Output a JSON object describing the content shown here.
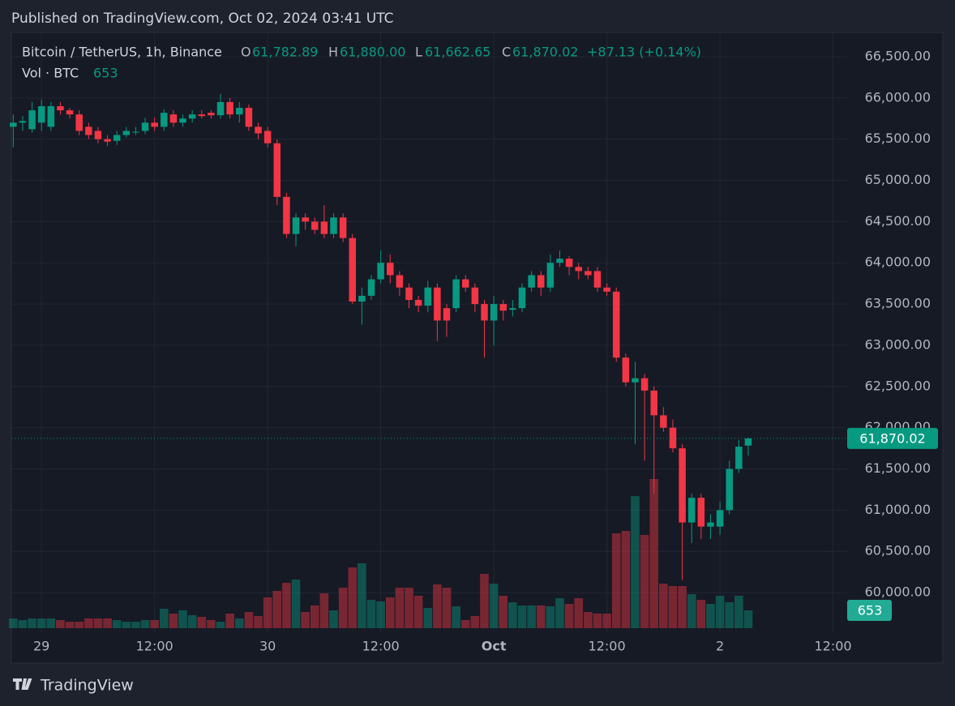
{
  "chart_data": {
    "type": "candlestick",
    "published": "Published on TradingView.com, Oct 02, 2024 03:41 UTC",
    "title": "Bitcoin / TetherUS, 1h, Binance",
    "legend": {
      "o_label": "O",
      "o": "61,782.89",
      "h_label": "H",
      "h": "61,880.00",
      "l_label": "L",
      "l": "61,662.65",
      "c_label": "C",
      "c": "61,870.02",
      "change": "+87.13 (+0.14%)"
    },
    "volume_title": "Vol · BTC",
    "volume_legend": "653",
    "last_price_label": "61,870.02",
    "last_volume_label": "653",
    "brand": "TradingView",
    "up_color": "#089981",
    "down_color": "#f23645",
    "open": [
      65650,
      65700,
      65620,
      65700,
      65650,
      65900,
      65850,
      65800,
      65650,
      65600,
      65500,
      65480,
      65550,
      65580,
      65600,
      65700,
      65650,
      65800,
      65700,
      65750,
      65800,
      65820,
      65790,
      65950,
      65800,
      65880,
      65650,
      65600,
      65450,
      64800,
      64350,
      64550,
      64500,
      64500,
      64350,
      64550,
      64300,
      63530,
      63600,
      63800,
      64000,
      63850,
      63700,
      63550,
      63480,
      63700,
      63450,
      63450,
      63800,
      63700,
      63500,
      63300,
      63500,
      63430,
      63450,
      63700,
      63850,
      63700,
      64000,
      64050,
      63950,
      63900,
      63900,
      63700,
      63650,
      62850,
      62550,
      62600,
      62450,
      62150,
      62000,
      61750,
      60850,
      61150,
      60800,
      60800,
      61000,
      61500,
      61782.89
    ],
    "high": [
      65800,
      65780,
      65950,
      65980,
      65950,
      65950,
      65880,
      65850,
      65700,
      65650,
      65550,
      65600,
      65650,
      65650,
      65760,
      65760,
      65860,
      65850,
      65800,
      65850,
      65850,
      65850,
      66050,
      66000,
      65950,
      65920,
      65700,
      65650,
      65500,
      64850,
      64600,
      64600,
      64550,
      64700,
      64600,
      64600,
      64350,
      63700,
      63850,
      64150,
      64100,
      63900,
      63750,
      63600,
      63780,
      63750,
      63500,
      63850,
      63850,
      63750,
      63550,
      63600,
      63550,
      63550,
      63750,
      63900,
      63900,
      64100,
      64150,
      64080,
      64000,
      63950,
      63950,
      63750,
      63700,
      62900,
      62800,
      62650,
      62500,
      62250,
      62100,
      61800,
      61200,
      61200,
      60950,
      61100,
      61600,
      61850,
      61880
    ],
    "low": [
      65400,
      65600,
      65580,
      65600,
      65600,
      65800,
      65750,
      65550,
      65500,
      65450,
      65420,
      65430,
      65520,
      65550,
      65560,
      65600,
      65600,
      65650,
      65650,
      65700,
      65750,
      65750,
      65750,
      65750,
      65700,
      65600,
      65500,
      65400,
      64700,
      64300,
      64200,
      64400,
      64350,
      64300,
      64300,
      64250,
      63500,
      63250,
      63550,
      63750,
      63750,
      63600,
      63450,
      63400,
      63400,
      63050,
      63100,
      63400,
      63650,
      63400,
      62850,
      63000,
      63300,
      63350,
      63400,
      63650,
      63600,
      63650,
      63950,
      63850,
      63800,
      63800,
      63650,
      63600,
      62800,
      62500,
      61800,
      61600,
      61200,
      61950,
      61700,
      60150,
      60600,
      60650,
      60650,
      60700,
      60950,
      61450,
      61662.65
    ],
    "close": [
      65700,
      65720,
      65850,
      65900,
      65900,
      65850,
      65800,
      65600,
      65550,
      65500,
      65470,
      65550,
      65600,
      65590,
      65700,
      65650,
      65820,
      65700,
      65750,
      65800,
      65780,
      65790,
      65950,
      65800,
      65880,
      65650,
      65570,
      65450,
      64800,
      64350,
      64550,
      64500,
      64400,
      64350,
      64550,
      64300,
      63530,
      63600,
      63800,
      64000,
      63850,
      63700,
      63550,
      63480,
      63700,
      63300,
      63300,
      63800,
      63700,
      63500,
      63300,
      63500,
      63420,
      63450,
      63700,
      63850,
      63700,
      64000,
      64050,
      63950,
      63900,
      63850,
      63700,
      63650,
      62850,
      62550,
      62600,
      62450,
      62150,
      62000,
      61750,
      60850,
      61150,
      60800,
      60850,
      61000,
      61500,
      61770,
      61870.02
    ],
    "volume": [
      356,
      297,
      356,
      356,
      356,
      297,
      238,
      238,
      356,
      356,
      356,
      297,
      238,
      238,
      297,
      297,
      713,
      535,
      653,
      475,
      416,
      297,
      238,
      535,
      356,
      594,
      446,
      1129,
      1366,
      1663,
      1782,
      594,
      832,
      1277,
      653,
      1485,
      2228,
      2376,
      1040,
      980,
      1129,
      1485,
      1485,
      1188,
      743,
      1604,
      1485,
      802,
      297,
      446,
      1990,
      1634,
      1188,
      950,
      832,
      832,
      832,
      802,
      1099,
      891,
      1099,
      594,
      535,
      535,
      3475,
      3564,
      4841,
      3416,
      5465,
      1634,
      1544,
      1544,
      1247,
      1040,
      891,
      1188,
      950,
      1188,
      653
    ],
    "ylim": [
      59568,
      66775
    ],
    "yticks": [
      {
        "value": 60000,
        "label": "60,000.00"
      },
      {
        "value": 60500,
        "label": "60,500.00"
      },
      {
        "value": 61000,
        "label": "61,000.00"
      },
      {
        "value": 61500,
        "label": "61,500.00"
      },
      {
        "value": 62000,
        "label": "62,000.00"
      },
      {
        "value": 62500,
        "label": "62,500.00"
      },
      {
        "value": 63000,
        "label": "63,000.00"
      },
      {
        "value": 63500,
        "label": "63,500.00"
      },
      {
        "value": 64000,
        "label": "64,000.00"
      },
      {
        "value": 64500,
        "label": "64,500.00"
      },
      {
        "value": 65000,
        "label": "65,000.00"
      },
      {
        "value": 65500,
        "label": "65,500.00"
      },
      {
        "value": 66000,
        "label": "66,000.00"
      },
      {
        "value": 66500,
        "label": "66,500.00"
      }
    ],
    "xlim": [
      -0.2,
      88.5
    ],
    "xticks": [
      {
        "value": 3,
        "label": "29"
      },
      {
        "value": 15,
        "label": "12:00"
      },
      {
        "value": 27,
        "label": "30"
      },
      {
        "value": 39,
        "label": "12:00"
      },
      {
        "value": 51,
        "label": "Oct"
      },
      {
        "value": 63,
        "label": "12:00"
      },
      {
        "value": 75,
        "label": "2"
      },
      {
        "value": 87,
        "label": "12:00"
      }
    ],
    "grid": true
  }
}
